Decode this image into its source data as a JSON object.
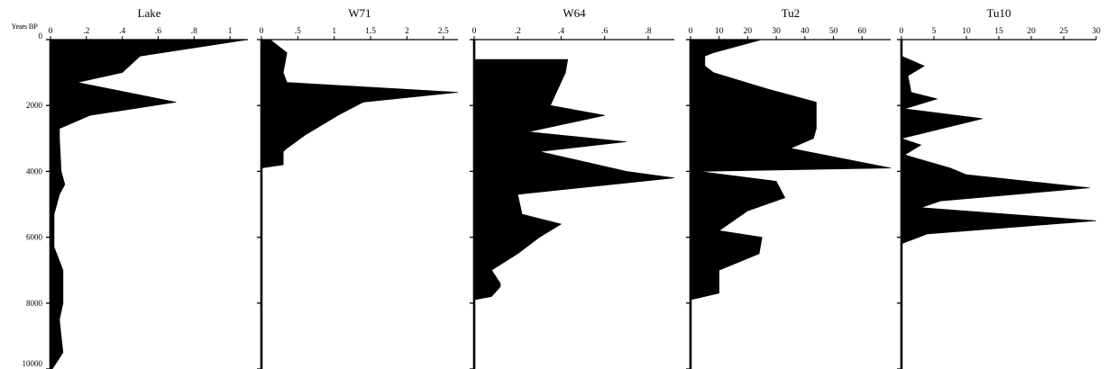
{
  "chart_data": {
    "type": "area",
    "orientation": "vertical-depth",
    "y_axis": {
      "title": "Years BP",
      "range": [
        0,
        10000
      ],
      "ticks": [
        0,
        2000,
        4000,
        6000,
        8000,
        10000
      ],
      "tick_labels": [
        "0",
        "2000",
        "4000",
        "6000",
        "8000",
        "10000"
      ]
    },
    "grid": false,
    "panels": [
      {
        "title": "Lake",
        "xlim": [
          0,
          1.1
        ],
        "ticks": [
          0,
          0.2,
          0.4,
          0.6,
          0.8,
          1
        ],
        "tick_labels": [
          "0",
          ".2",
          ".4",
          ".6",
          ".8",
          "1"
        ],
        "y": [
          0,
          500,
          1000,
          1300,
          1900,
          2300,
          2700,
          3000,
          4000,
          4400,
          4700,
          5300,
          6000,
          6300,
          7000,
          7500,
          8000,
          8500,
          9000,
          9500,
          10000
        ],
        "values": [
          1.1,
          0.5,
          0.4,
          0.15,
          0.7,
          0.22,
          0.05,
          0.05,
          0.06,
          0.08,
          0.05,
          0.02,
          0.02,
          0.02,
          0.07,
          0.07,
          0.07,
          0.05,
          0.06,
          0.07,
          0.01
        ]
      },
      {
        "title": "W71",
        "xlim": [
          0,
          2.7
        ],
        "ticks": [
          0,
          0.5,
          1,
          1.5,
          2,
          2.5
        ],
        "tick_labels": [
          "0",
          ".5",
          "1",
          "1.5",
          "2",
          "2.5"
        ],
        "y": [
          0,
          400,
          1000,
          1300,
          1600,
          1900,
          2300,
          2900,
          3300,
          3400,
          3800,
          3900
        ],
        "values": [
          0.12,
          0.35,
          0.3,
          0.35,
          2.7,
          1.4,
          1.05,
          0.6,
          0.35,
          0.3,
          0.3,
          0.0
        ]
      },
      {
        "title": "W64",
        "xlim": [
          0,
          0.92
        ],
        "ticks": [
          0,
          0.2,
          0.4,
          0.6,
          0.8
        ],
        "tick_labels": [
          "0",
          ".2",
          ".4",
          ".6",
          ".8"
        ],
        "y": [
          600,
          1000,
          2000,
          2300,
          2800,
          3100,
          3400,
          4000,
          4200,
          4700,
          5300,
          5600,
          6000,
          6500,
          7000,
          7400,
          7500,
          7800,
          7900
        ],
        "values": [
          0.43,
          0.42,
          0.35,
          0.6,
          0.25,
          0.7,
          0.3,
          0.7,
          0.92,
          0.2,
          0.22,
          0.4,
          0.3,
          0.2,
          0.08,
          0.12,
          0.12,
          0.08,
          0.0
        ]
      },
      {
        "title": "Tu2",
        "xlim": [
          0,
          70
        ],
        "ticks": [
          0,
          10,
          20,
          30,
          40,
          50,
          60
        ],
        "tick_labels": [
          "0",
          "10",
          "20",
          "30",
          "40",
          "50",
          "60"
        ],
        "y": [
          0,
          400,
          500,
          800,
          1000,
          1500,
          1900,
          2200,
          2700,
          3000,
          3300,
          3900,
          4000,
          4300,
          4800,
          5200,
          5800,
          6000,
          6500,
          7000,
          7700,
          7900,
          8000
        ],
        "values": [
          25,
          8,
          5,
          5,
          8,
          27,
          44,
          44,
          44,
          43,
          35,
          70,
          3,
          30,
          33,
          20,
          10,
          25,
          24,
          10,
          10,
          0,
          0
        ]
      },
      {
        "title": "Tu10",
        "xlim": [
          0,
          30
        ],
        "ticks": [
          0,
          5,
          10,
          15,
          20,
          25,
          30
        ],
        "tick_labels": [
          "0",
          "5",
          "10",
          "15",
          "20",
          "25",
          "30"
        ],
        "y": [
          0,
          500,
          800,
          1100,
          1600,
          1800,
          2100,
          2400,
          3000,
          3200,
          3500,
          3900,
          4100,
          4500,
          4900,
          5100,
          5500,
          5900,
          6200,
          6300
        ],
        "values": [
          0,
          0,
          3.5,
          1,
          1.5,
          5.5,
          0.5,
          12.5,
          0,
          3,
          0.5,
          7.5,
          10,
          29,
          6,
          3,
          30,
          4,
          0,
          0
        ]
      }
    ]
  }
}
